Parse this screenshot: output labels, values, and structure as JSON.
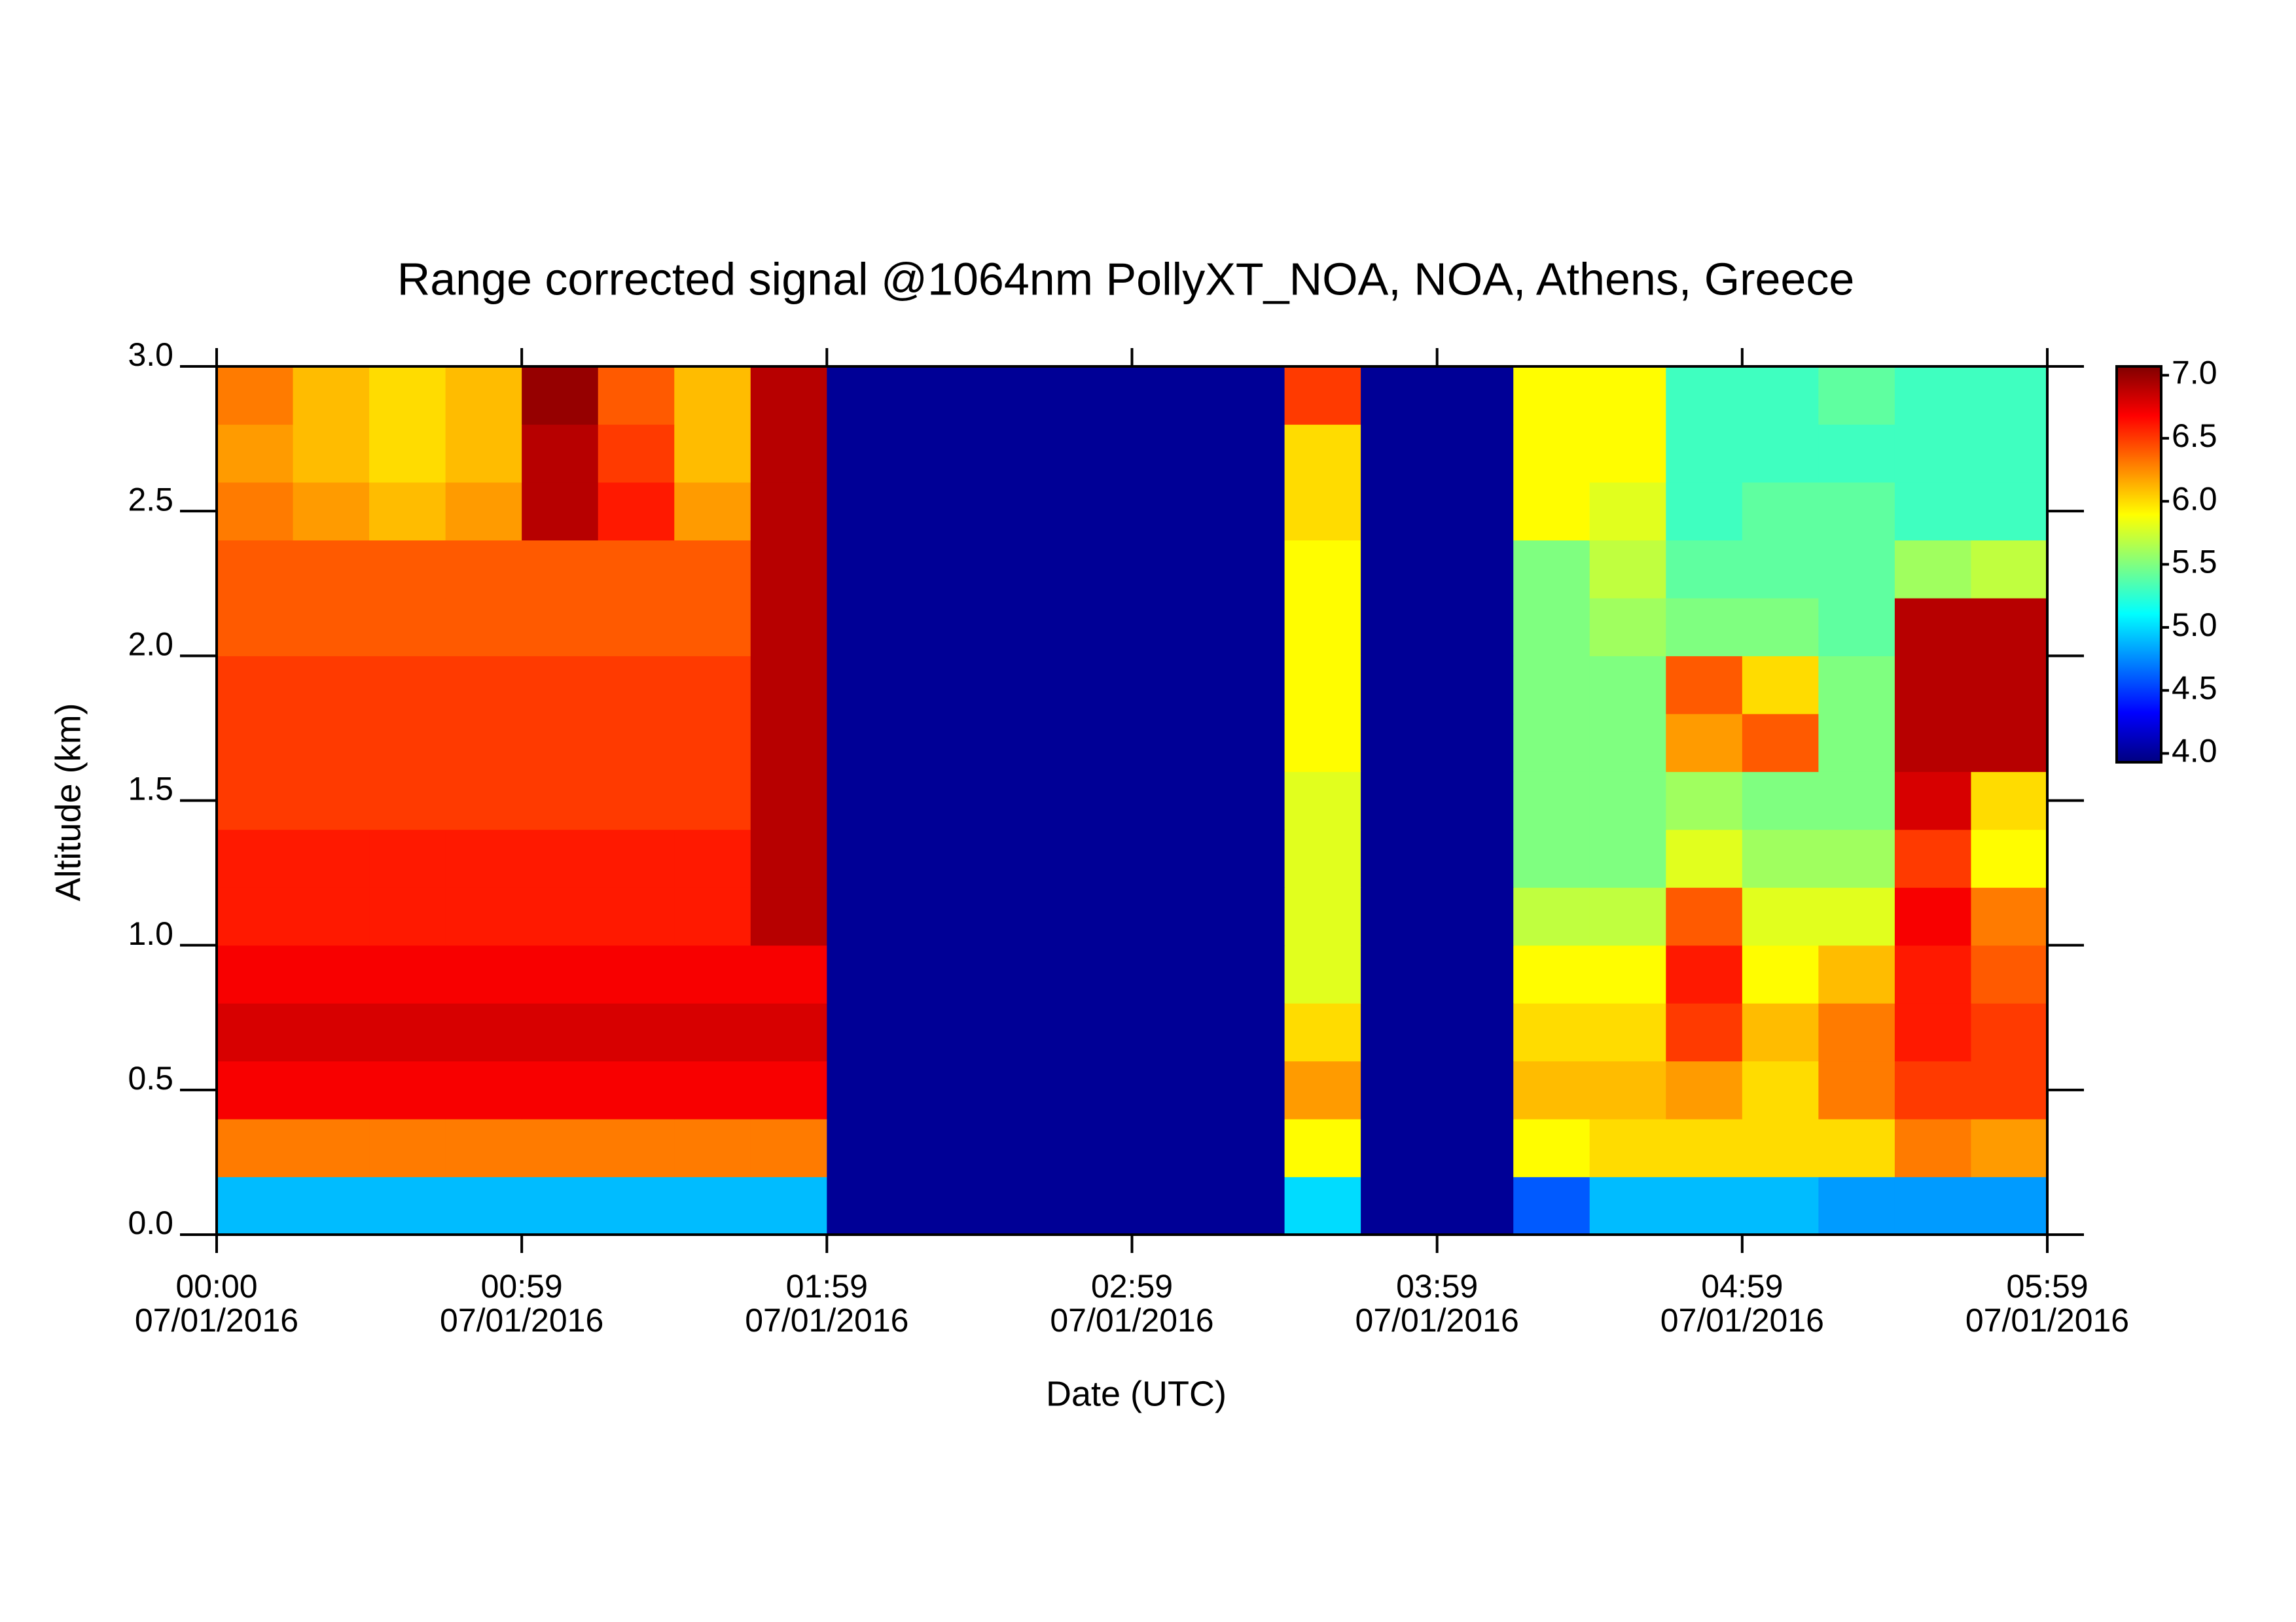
{
  "chart_data": {
    "type": "heatmap",
    "title": "Range corrected signal @1064nm  PollyXT_NOA, NOA, Athens, Greece",
    "xlabel": "Date (UTC)",
    "ylabel": "Altitude (km)",
    "colormap": "jet",
    "xlim": [
      0,
      360
    ],
    "ylim": [
      0,
      3.0
    ],
    "clim": [
      3.93,
      7.07
    ],
    "xticks": [
      {
        "value": 0,
        "label": "00:00",
        "date": "07/01/2016"
      },
      {
        "value": 60,
        "label": "00:59",
        "date": "07/01/2016"
      },
      {
        "value": 120,
        "label": "01:59",
        "date": "07/01/2016"
      },
      {
        "value": 180,
        "label": "02:59",
        "date": "07/01/2016"
      },
      {
        "value": 240,
        "label": "03:59",
        "date": "07/01/2016"
      },
      {
        "value": 300,
        "label": "04:59",
        "date": "07/01/2016"
      },
      {
        "value": 360,
        "label": "05:59",
        "date": "07/01/2016"
      }
    ],
    "yticks": [
      {
        "value": 0,
        "label": "0.0"
      },
      {
        "value": 0.5,
        "label": "0.5"
      },
      {
        "value": 1,
        "label": "1.0"
      },
      {
        "value": 1.5,
        "label": "1.5"
      },
      {
        "value": 2,
        "label": "2.0"
      },
      {
        "value": 2.5,
        "label": "2.5"
      },
      {
        "value": 3,
        "label": "3.0"
      }
    ],
    "cticks": [
      {
        "value": 4,
        "label": "4.0"
      },
      {
        "value": 4.5,
        "label": "4.5"
      },
      {
        "value": 5,
        "label": "5.0"
      },
      {
        "value": 5.5,
        "label": "5.5"
      },
      {
        "value": 6,
        "label": "6.0"
      },
      {
        "value": 6.5,
        "label": "6.5"
      },
      {
        "value": 7,
        "label": "7.0"
      }
    ],
    "xbins": [
      0,
      15,
      30,
      45,
      60,
      75,
      90,
      105,
      120,
      135,
      150,
      165,
      180,
      195,
      210,
      225,
      240,
      255,
      270,
      285,
      300,
      315,
      330,
      345,
      360
    ],
    "ybins": [
      0,
      0.2,
      0.4,
      0.6,
      0.8,
      1.0,
      1.2,
      1.4,
      1.6,
      1.8,
      2.0,
      2.2,
      2.4,
      2.6,
      2.8,
      3.0
    ],
    "z": [
      [
        4.9,
        4.9,
        4.9,
        4.9,
        4.9,
        4.9,
        4.9,
        4.9,
        4,
        4,
        4,
        4,
        4,
        4,
        5.0,
        4,
        4,
        4.6,
        4.9,
        4.9,
        4.9,
        4.8,
        4.8,
        4.8
      ],
      [
        6.3,
        6.3,
        6.3,
        6.3,
        6.3,
        6.3,
        6.3,
        6.3,
        4,
        4,
        4,
        4,
        4,
        4,
        5.9,
        4,
        4,
        5.9,
        6.0,
        6.0,
        6.0,
        6.0,
        6.3,
        6.2
      ],
      [
        6.7,
        6.7,
        6.7,
        6.7,
        6.7,
        6.7,
        6.7,
        6.7,
        4,
        4,
        4,
        4,
        4,
        4,
        6.2,
        4,
        4,
        6.1,
        6.1,
        6.2,
        6.0,
        6.3,
        6.5,
        6.5
      ],
      [
        6.8,
        6.8,
        6.8,
        6.8,
        6.8,
        6.8,
        6.8,
        6.8,
        4,
        4,
        4,
        4,
        4,
        4,
        6.0,
        4,
        4,
        6.0,
        6.0,
        6.5,
        6.1,
        6.3,
        6.6,
        6.5
      ],
      [
        6.7,
        6.7,
        6.7,
        6.7,
        6.7,
        6.7,
        6.7,
        6.7,
        4,
        4,
        4,
        4,
        4,
        4,
        5.8,
        4,
        4,
        5.9,
        5.9,
        6.6,
        5.9,
        6.1,
        6.6,
        6.4
      ],
      [
        6.6,
        6.6,
        6.6,
        6.6,
        6.6,
        6.6,
        6.6,
        6.9,
        4,
        4,
        4,
        4,
        4,
        4,
        5.8,
        4,
        4,
        5.7,
        5.7,
        6.4,
        5.8,
        5.8,
        6.7,
        6.3
      ],
      [
        6.6,
        6.6,
        6.6,
        6.6,
        6.6,
        6.6,
        6.6,
        6.9,
        4,
        4,
        4,
        4,
        4,
        4,
        5.8,
        4,
        4,
        5.5,
        5.5,
        5.8,
        5.6,
        5.6,
        6.5,
        5.9
      ],
      [
        6.5,
        6.5,
        6.5,
        6.5,
        6.5,
        6.5,
        6.5,
        6.9,
        4,
        4,
        4,
        4,
        4,
        4,
        5.8,
        4,
        4,
        5.5,
        5.5,
        5.6,
        5.5,
        5.5,
        6.8,
        6.0
      ],
      [
        6.5,
        6.5,
        6.5,
        6.5,
        6.5,
        6.5,
        6.5,
        6.9,
        4,
        4,
        4,
        4,
        4,
        4,
        5.9,
        4,
        4,
        5.5,
        5.5,
        6.2,
        6.4,
        5.5,
        6.9,
        6.9
      ],
      [
        6.5,
        6.5,
        6.5,
        6.5,
        6.5,
        6.5,
        6.5,
        6.9,
        4,
        4,
        4,
        4,
        4,
        4,
        5.9,
        4,
        4,
        5.5,
        5.5,
        6.4,
        6.0,
        5.5,
        6.9,
        6.9
      ],
      [
        6.4,
        6.4,
        6.4,
        6.4,
        6.4,
        6.4,
        6.4,
        6.9,
        4,
        4,
        4,
        4,
        4,
        4,
        5.9,
        4,
        4,
        5.5,
        5.6,
        5.5,
        5.5,
        5.4,
        6.9,
        6.9
      ],
      [
        6.4,
        6.4,
        6.4,
        6.4,
        6.4,
        6.4,
        6.4,
        6.9,
        4,
        4,
        4,
        4,
        4,
        4,
        5.9,
        4,
        4,
        5.5,
        5.7,
        5.4,
        5.4,
        5.4,
        5.6,
        5.7
      ],
      [
        6.3,
        6.2,
        6.1,
        6.2,
        6.9,
        6.6,
        6.2,
        6.9,
        4,
        4,
        4,
        4,
        4,
        4,
        6.0,
        4,
        4,
        5.9,
        5.8,
        5.3,
        5.4,
        5.4,
        5.3,
        5.3
      ],
      [
        6.2,
        6.1,
        6.0,
        6.1,
        6.9,
        6.5,
        6.1,
        6.9,
        4,
        4,
        4,
        4,
        4,
        4,
        6.0,
        4,
        4,
        5.9,
        5.9,
        5.3,
        5.3,
        5.3,
        5.3,
        5.3
      ],
      [
        6.3,
        6.1,
        6.0,
        6.1,
        7.0,
        6.4,
        6.1,
        6.9,
        4,
        4,
        4,
        4,
        4,
        4,
        6.5,
        4,
        4,
        5.9,
        5.9,
        5.3,
        5.3,
        5.4,
        5.3,
        5.3
      ]
    ]
  }
}
